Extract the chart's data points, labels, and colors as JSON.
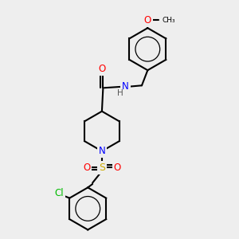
{
  "bg_color": "#eeeeee",
  "bond_color": "#000000",
  "atom_colors": {
    "O": "#ff0000",
    "N": "#0000ff",
    "S": "#ccaa00",
    "Cl": "#00bb00",
    "H": "#555555",
    "C": "#000000"
  },
  "figsize": [
    3.0,
    3.0
  ],
  "dpi": 100,
  "lw": 1.5,
  "ring_r": 0.09,
  "pip_r": 0.085
}
